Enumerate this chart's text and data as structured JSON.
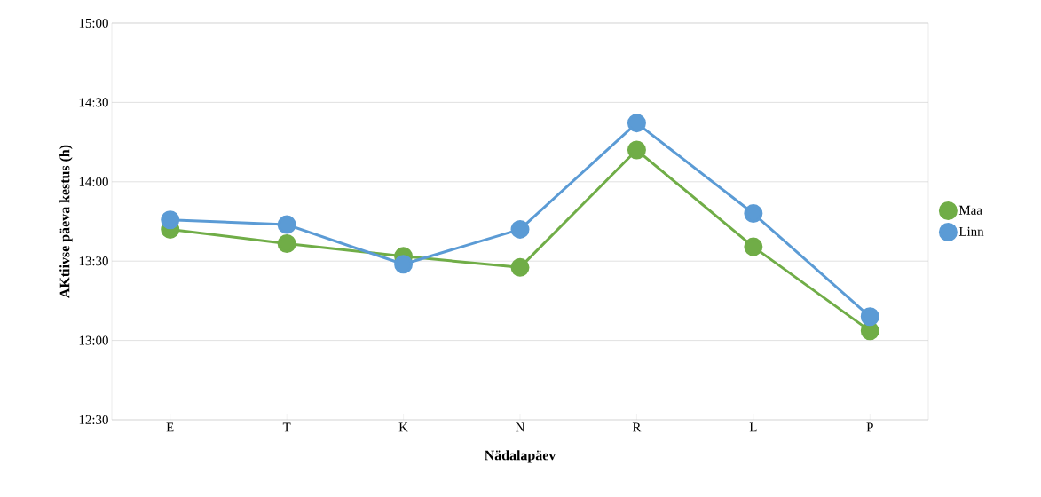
{
  "chart_data": {
    "type": "line",
    "xlabel": "Nädalapäev",
    "ylabel": "AKtiivse päeva kestus (h)",
    "categories": [
      "E",
      "T",
      "K",
      "N",
      "R",
      "L",
      "P"
    ],
    "series": [
      {
        "name": "Maa",
        "color": "#70ad47",
        "values": [
          13.7,
          13.61,
          13.53,
          13.46,
          14.2,
          13.59,
          13.06
        ]
      },
      {
        "name": "Linn",
        "color": "#5b9bd5",
        "values": [
          13.76,
          13.73,
          13.48,
          13.7,
          14.37,
          13.8,
          13.15
        ]
      }
    ],
    "ylim": [
      12.5,
      15
    ],
    "yticks": [
      {
        "value": 12.5,
        "label": "12:30"
      },
      {
        "value": 13,
        "label": "13:00"
      },
      {
        "value": 13.5,
        "label": "13:30"
      },
      {
        "value": 14,
        "label": "14:00"
      },
      {
        "value": 14.5,
        "label": "14:30"
      },
      {
        "value": 15,
        "label": "15:00"
      }
    ],
    "grid": "y",
    "legend": "right",
    "marker": "circle",
    "line_style": "solid"
  }
}
